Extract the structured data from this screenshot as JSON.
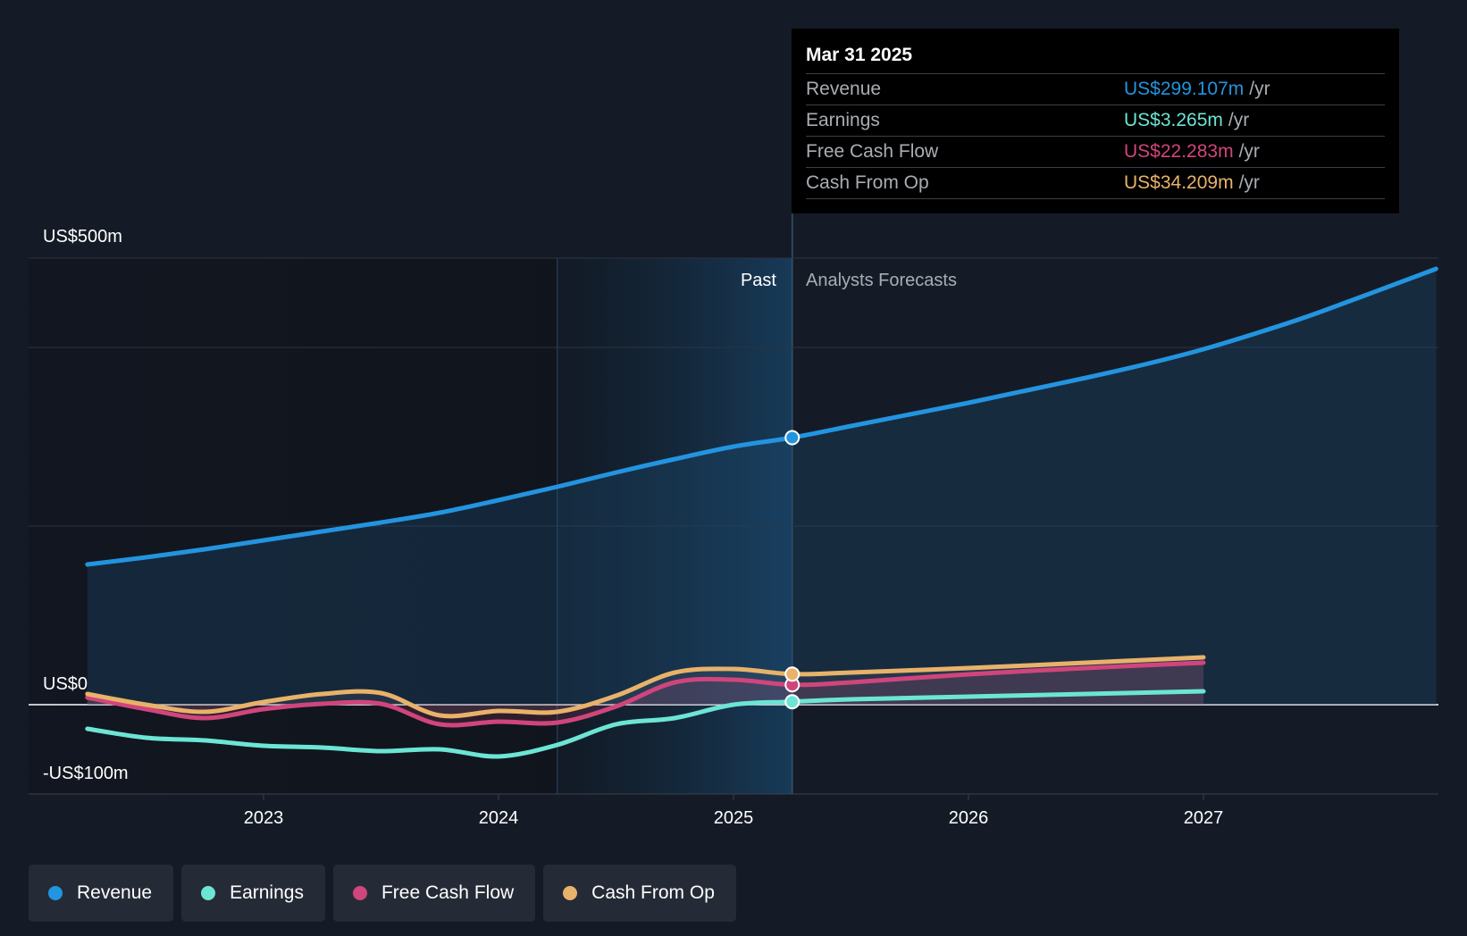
{
  "tooltip": {
    "date": "Mar 31 2025",
    "rows": [
      {
        "label": "Revenue",
        "value": "US$299.107m",
        "unit": "/yr",
        "color": "#2394df"
      },
      {
        "label": "Earnings",
        "value": "US$3.265m",
        "unit": "/yr",
        "color": "#6ce5d4"
      },
      {
        "label": "Free Cash Flow",
        "value": "US$22.283m",
        "unit": "/yr",
        "color": "#d0457c"
      },
      {
        "label": "Cash From Op",
        "value": "US$34.209m",
        "unit": "/yr",
        "color": "#e8b26a"
      }
    ]
  },
  "legend": [
    {
      "label": "Revenue",
      "color": "#2394df"
    },
    {
      "label": "Earnings",
      "color": "#6ce5d4"
    },
    {
      "label": "Free Cash Flow",
      "color": "#d0457c"
    },
    {
      "label": "Cash From Op",
      "color": "#e8b26a"
    }
  ],
  "chart_data": {
    "type": "line",
    "y_axis_labels": {
      "top": "US$500m",
      "zero": "US$0",
      "bottom": "-US$100m"
    },
    "ylim": [
      -100,
      500
    ],
    "xlim": [
      2022.25,
      2027.99
    ],
    "x_ticks": [
      {
        "label": "2023",
        "value": 2023
      },
      {
        "label": "2024",
        "value": 2024
      },
      {
        "label": "2025",
        "value": 2025
      },
      {
        "label": "2026",
        "value": 2026
      },
      {
        "label": "2027",
        "value": 2027
      }
    ],
    "past_label": "Past",
    "forecast_label": "Analysts Forecasts",
    "divider_x": 2025.25,
    "highlight_start_x": 2024.25,
    "grid": true,
    "series": [
      {
        "name": "Revenue",
        "color": "#2394df",
        "x": [
          2022.25,
          2022.5,
          2022.75,
          2023.0,
          2023.25,
          2023.5,
          2023.75,
          2024.0,
          2024.25,
          2024.5,
          2024.75,
          2025.0,
          2025.25,
          2025.5,
          2025.75,
          2026.0,
          2026.25,
          2026.5,
          2026.75,
          2027.0,
          2027.25,
          2027.5,
          2027.99
        ],
        "y": [
          157,
          165,
          174,
          184,
          194,
          204,
          215,
          229,
          244,
          260,
          275,
          289,
          299,
          312,
          325,
          338,
          352,
          366,
          381,
          398,
          418,
          440,
          488
        ]
      },
      {
        "name": "Earnings",
        "color": "#6ce5d4",
        "x": [
          2022.25,
          2022.5,
          2022.75,
          2023.0,
          2023.25,
          2023.5,
          2023.75,
          2024.0,
          2024.25,
          2024.5,
          2024.75,
          2025.0,
          2025.25,
          2025.5,
          2026.0,
          2026.5,
          2027.0
        ],
        "y": [
          -27,
          -37,
          -40,
          -46,
          -48,
          -52,
          -50,
          -58,
          -45,
          -22,
          -15,
          0,
          3.3,
          6,
          9,
          12,
          15
        ]
      },
      {
        "name": "Free Cash Flow",
        "color": "#d0457c",
        "x": [
          2022.25,
          2022.5,
          2022.75,
          2023.0,
          2023.25,
          2023.5,
          2023.75,
          2024.0,
          2024.25,
          2024.5,
          2024.75,
          2025.0,
          2025.25,
          2025.5,
          2026.0,
          2026.5,
          2027.0
        ],
        "y": [
          8,
          -5,
          -15,
          -5,
          1,
          1,
          -22,
          -19,
          -20,
          -2,
          25,
          28,
          22.3,
          25,
          34,
          41,
          47
        ]
      },
      {
        "name": "Cash From Op",
        "color": "#e8b26a",
        "x": [
          2022.25,
          2022.5,
          2022.75,
          2023.0,
          2023.25,
          2023.5,
          2023.75,
          2024.0,
          2024.25,
          2024.5,
          2024.75,
          2025.0,
          2025.25,
          2025.5,
          2026.0,
          2026.5,
          2027.0
        ],
        "y": [
          12,
          0,
          -8,
          3,
          12,
          13,
          -12,
          -7,
          -8,
          10,
          36,
          40,
          34.2,
          36,
          41,
          47,
          53
        ]
      }
    ]
  }
}
